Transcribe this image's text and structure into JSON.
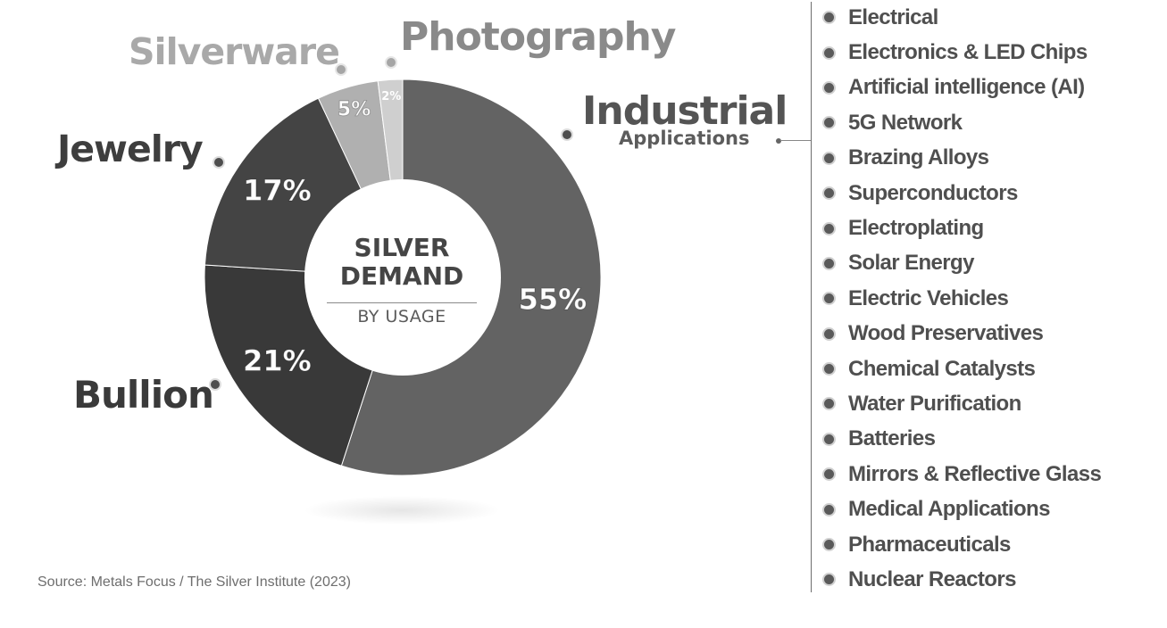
{
  "chart_data": {
    "type": "pie",
    "title": "SILVER DEMAND",
    "subtitle": "BY USAGE",
    "slices": [
      {
        "name": "Industrial Applications",
        "label": "Industrial",
        "sublabel": "Applications",
        "value": 55,
        "value_label": "55%",
        "color": "#636363"
      },
      {
        "name": "Bullion",
        "label": "Bullion",
        "value": 21,
        "value_label": "21%",
        "color": "#393939"
      },
      {
        "name": "Jewelry",
        "label": "Jewelry",
        "value": 17,
        "value_label": "17%",
        "color": "#444444"
      },
      {
        "name": "Silverware",
        "label": "Silverware",
        "value": 5,
        "value_label": "5%",
        "color": "#b0b0b0"
      },
      {
        "name": "Photography",
        "label": "Photography",
        "value": 2,
        "value_label": "2%",
        "color": "#cfcfcf"
      }
    ]
  },
  "industrial_applications": [
    "Electrical",
    "Electronics & LED Chips",
    "Artificial intelligence (AI)",
    "5G Network",
    "Brazing Alloys",
    "Superconductors",
    "Electroplating",
    "Solar Energy",
    "Electric Vehicles",
    "Wood Preservatives",
    "Chemical Catalysts",
    "Water Purification",
    "Batteries",
    "Mirrors & Reflective Glass",
    "Medical Applications",
    "Pharmaceuticals",
    "Nuclear Reactors"
  ],
  "center": {
    "line1": "SILVER",
    "line2": "DEMAND",
    "sub": "BY USAGE"
  },
  "source": "Source: Metals Focus / The Silver Institute (2023)"
}
